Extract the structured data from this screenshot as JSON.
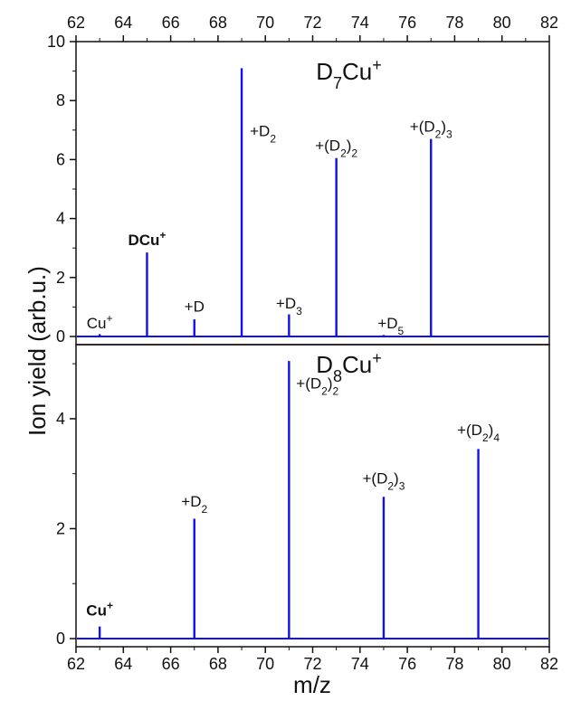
{
  "chart_data": {
    "type": "line",
    "xlabel": "m/z",
    "ylabel": "Ion yield (arb.u.)",
    "xlim": [
      62,
      82
    ],
    "x_ticks": [
      "62",
      "64",
      "66",
      "68",
      "70",
      "72",
      "74",
      "76",
      "78",
      "80",
      "82"
    ],
    "line_color": "#1010ee",
    "panels": [
      {
        "title": "D7Cu+",
        "title_parts": {
          "base": "D",
          "sub": "7",
          "mid": "Cu",
          "sup": "+"
        },
        "ylim": [
          0,
          10
        ],
        "y_ticks": [
          "0",
          "2",
          "4",
          "6",
          "8",
          "10"
        ],
        "peaks": [
          {
            "x": 63,
            "y": 0.08
          },
          {
            "x": 65,
            "y": 2.85
          },
          {
            "x": 67,
            "y": 0.58
          },
          {
            "x": 69,
            "y": 9.1
          },
          {
            "x": 71,
            "y": 0.75
          },
          {
            "x": 73,
            "y": 6.05
          },
          {
            "x": 75,
            "y": 0.05
          },
          {
            "x": 77,
            "y": 6.7
          }
        ],
        "annotations": [
          {
            "x": 63,
            "y": 0.28,
            "base": "Cu",
            "sup": "+",
            "bold": false
          },
          {
            "x": 65,
            "y": 3.1,
            "base": "DCu",
            "sup": "+",
            "bold": true
          },
          {
            "x": 67,
            "y": 0.85,
            "base": "+D",
            "bold": false
          },
          {
            "x": 69.9,
            "y": 6.8,
            "base": "+D",
            "sub": "2",
            "bold": false
          },
          {
            "x": 71,
            "y": 0.95,
            "base": "+D",
            "sub": "3",
            "bold": false
          },
          {
            "x": 73,
            "y": 6.3,
            "base": "+(D",
            "sub": "2",
            "post": ")",
            "sub2": "2",
            "bold": false
          },
          {
            "x": 75.3,
            "y": 0.28,
            "base": "+D",
            "sub": "5",
            "bold": false
          },
          {
            "x": 77,
            "y": 6.95,
            "base": "+(D",
            "sub": "2",
            "post": ")",
            "sub2": "3",
            "bold": false
          }
        ]
      },
      {
        "title": "D8Cu+",
        "title_parts": {
          "base": "D",
          "sub": "8",
          "mid": "Cu",
          "sup": "+"
        },
        "ylim": [
          0,
          5.2
        ],
        "y_ticks": [
          "0",
          "2",
          "4"
        ],
        "peaks": [
          {
            "x": 63,
            "y": 0.22
          },
          {
            "x": 67,
            "y": 2.18
          },
          {
            "x": 71,
            "y": 5.05
          },
          {
            "x": 75,
            "y": 2.58
          },
          {
            "x": 79,
            "y": 3.45
          }
        ],
        "annotations": [
          {
            "x": 63,
            "y": 0.42,
            "base": "Cu",
            "sup": "+",
            "bold": true
          },
          {
            "x": 67,
            "y": 2.4,
            "base": "+D",
            "sub": "2",
            "bold": false
          },
          {
            "x": 72.2,
            "y": 4.55,
            "base": "+(D",
            "sub": "2",
            "post": ")",
            "sub2": "2",
            "bold": false
          },
          {
            "x": 75,
            "y": 2.82,
            "base": "+(D",
            "sub": "2",
            "post": ")",
            "sub2": "3",
            "bold": false
          },
          {
            "x": 79,
            "y": 3.7,
            "base": "+(D",
            "sub": "2",
            "post": ")",
            "sub2": "4",
            "bold": false
          }
        ]
      }
    ]
  }
}
